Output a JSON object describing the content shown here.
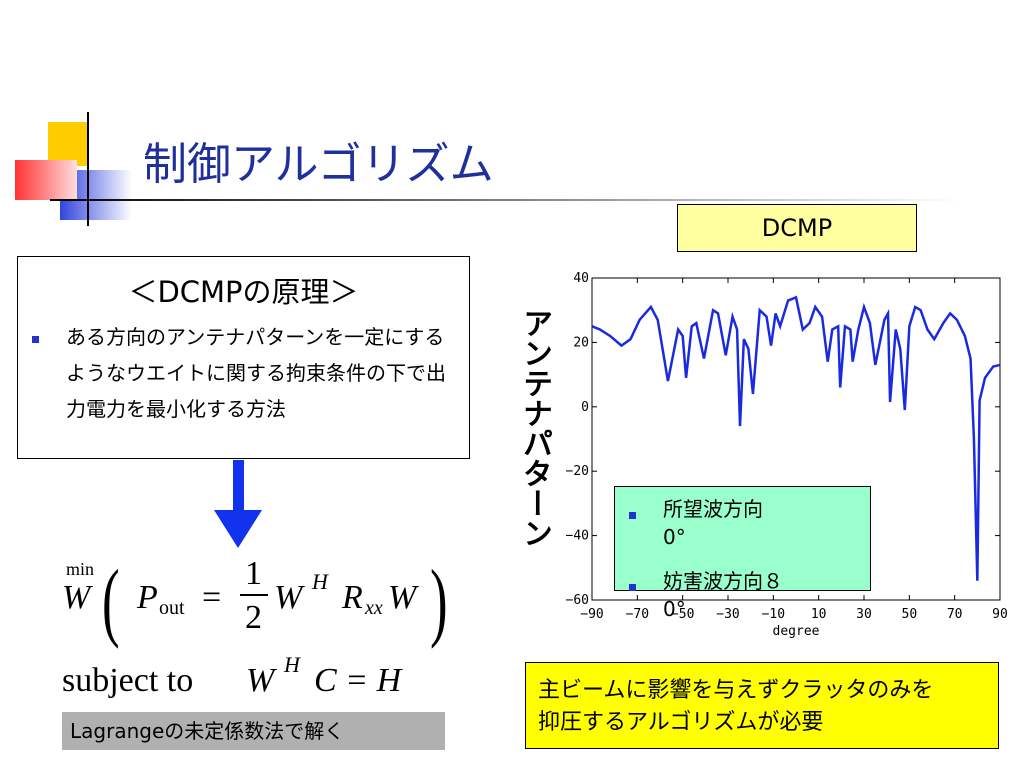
{
  "header": {
    "title": "制御アルゴリズム",
    "tag": "DCMP"
  },
  "principle": {
    "title": "＜DCMPの原理＞",
    "item": "ある方向のアンテナパターンを一定にするようなウエイトに関する拘束条件の下で出力電力を最小化する方法"
  },
  "equation": {
    "min": "min",
    "lhs": "W",
    "p": "P",
    "sub": "out",
    "eq": "=",
    "num": "1",
    "den": "2",
    "w1": "W",
    "sup1": "H",
    "r": "R",
    "sub2": "xx",
    "w2": "W"
  },
  "constraint": {
    "text": "subject to",
    "w": "W",
    "sup": "H",
    "rest": "C = H"
  },
  "note": "Lagrangeの未定係数法で解く",
  "bottom": {
    "lines": [
      "主ビームに影響を与えずクラッタのみを",
      "抑圧するアルゴリズムが必要"
    ]
  },
  "legend": {
    "items": [
      "所望波方向0°",
      "妨害波方向８0°"
    ]
  },
  "chart_data": {
    "type": "line",
    "ylabel": "アンテナパターン",
    "xlabel": "degree",
    "color": "#1a2adf",
    "x": [
      -90,
      -86.5,
      -82,
      -77,
      -73,
      -69,
      -64,
      -61,
      -56.5,
      -52,
      -50,
      -48.5,
      -46,
      -44,
      -40.6,
      -36.6,
      -34.4,
      -31,
      -28,
      -26,
      -24.7,
      -23,
      -21,
      -19,
      -16,
      -13,
      -11,
      -9,
      -7,
      -3.5,
      0,
      3,
      6,
      8.5,
      11.5,
      14,
      16,
      18.6,
      19.5,
      21.6,
      24,
      25,
      27.5,
      30,
      32.6,
      35,
      39,
      40.6,
      41.5,
      44,
      46,
      48,
      50,
      52.6,
      55,
      58,
      61,
      65,
      68,
      71,
      74.5,
      77,
      78.5,
      80,
      81,
      83.4,
      87,
      90
    ],
    "values": [
      25,
      24,
      22,
      19,
      21,
      27,
      31,
      27,
      8,
      24,
      22,
      9,
      25,
      26,
      15,
      30,
      29,
      16,
      28,
      24,
      -6,
      21,
      18,
      4,
      30,
      28,
      19,
      29,
      25,
      33,
      34,
      24,
      26,
      31,
      28,
      14,
      24,
      25,
      6,
      25,
      24,
      14,
      24,
      31,
      26,
      13,
      27,
      29,
      1.5,
      24,
      18,
      -1,
      25,
      31,
      30,
      24,
      21,
      26,
      29,
      27,
      22,
      15,
      -10,
      -54,
      2,
      9,
      12.5,
      13
    ],
    "xlim": [
      -90,
      90
    ],
    "ylim": [
      -60,
      40
    ],
    "xticks": [
      {
        "value": -90,
        "label": "−90"
      },
      {
        "value": -70,
        "label": "−70"
      },
      {
        "value": -50,
        "label": "−50"
      },
      {
        "value": -30,
        "label": "−30"
      },
      {
        "value": -10,
        "label": "−10"
      },
      10,
      30,
      50,
      70,
      90
    ],
    "yticks": [
      {
        "value": -60,
        "label": "−60"
      },
      {
        "value": -40,
        "label": "−40"
      },
      {
        "value": -20,
        "label": "−20"
      },
      0,
      20,
      40
    ]
  }
}
